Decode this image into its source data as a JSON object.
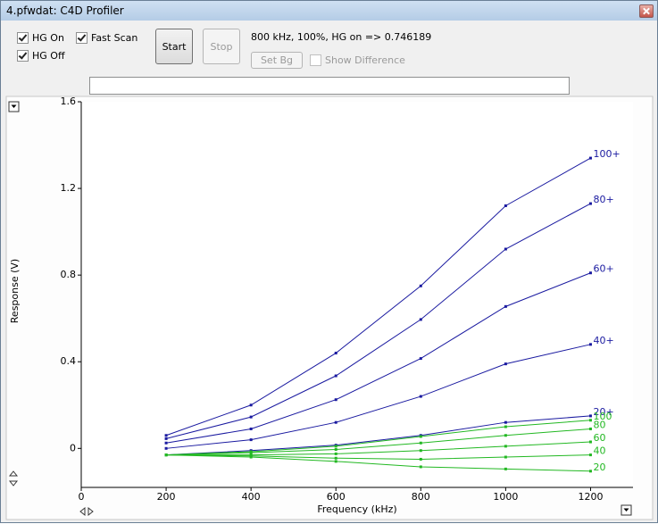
{
  "window": {
    "title": "4.pfwdat: C4D Profiler"
  },
  "controls": {
    "hg_on": {
      "label": "HG On",
      "checked": true
    },
    "fast_scan": {
      "label": "Fast Scan",
      "checked": true
    },
    "hg_off": {
      "label": "HG Off",
      "checked": true
    },
    "start": "Start",
    "stop": "Stop",
    "set_bg": "Set Bg",
    "show_difference": {
      "label": "Show Difference",
      "checked": false
    }
  },
  "status": "800 kHz, 100%, HG on => 0.746189",
  "chart_data": {
    "type": "line",
    "x_label": "Frequency (kHz)",
    "y_label": "Response (V)",
    "x": [
      200,
      400,
      600,
      800,
      1000,
      1200
    ],
    "xlim": [
      0,
      1300
    ],
    "xticks": [
      0,
      200,
      400,
      600,
      800,
      1000,
      1200
    ],
    "ylim": [
      -0.18,
      1.6
    ],
    "yticks": [
      0,
      0.4,
      0.8,
      1.2,
      1.6
    ],
    "series": [
      {
        "name": "100+",
        "color": "#1a1aa0",
        "values": [
          0.06,
          0.2,
          0.44,
          0.75,
          1.12,
          1.34
        ]
      },
      {
        "name": "80+",
        "color": "#1a1aa0",
        "values": [
          0.045,
          0.145,
          0.335,
          0.595,
          0.92,
          1.13
        ]
      },
      {
        "name": "60+",
        "color": "#1a1aa0",
        "values": [
          0.025,
          0.09,
          0.225,
          0.415,
          0.655,
          0.81
        ]
      },
      {
        "name": "40+",
        "color": "#1a1aa0",
        "values": [
          0.0,
          0.04,
          0.12,
          0.24,
          0.39,
          0.48
        ]
      },
      {
        "name": "20+",
        "color": "#1a1aa0",
        "values": [
          -0.03,
          -0.01,
          0.015,
          0.06,
          0.12,
          0.15
        ]
      },
      {
        "name": "100",
        "color": "#22b822",
        "values": [
          -0.03,
          -0.015,
          0.01,
          0.055,
          0.1,
          0.13
        ]
      },
      {
        "name": "80",
        "color": "#22b822",
        "values": [
          -0.03,
          -0.02,
          -0.005,
          0.025,
          0.06,
          0.09
        ]
      },
      {
        "name": "60",
        "color": "#22b822",
        "values": [
          -0.03,
          -0.03,
          -0.025,
          -0.01,
          0.01,
          0.03
        ]
      },
      {
        "name": "40",
        "color": "#22b822",
        "values": [
          -0.03,
          -0.035,
          -0.045,
          -0.05,
          -0.04,
          -0.03
        ]
      },
      {
        "name": "20",
        "color": "#22b822",
        "values": [
          -0.03,
          -0.04,
          -0.06,
          -0.085,
          -0.095,
          -0.105
        ]
      }
    ]
  }
}
